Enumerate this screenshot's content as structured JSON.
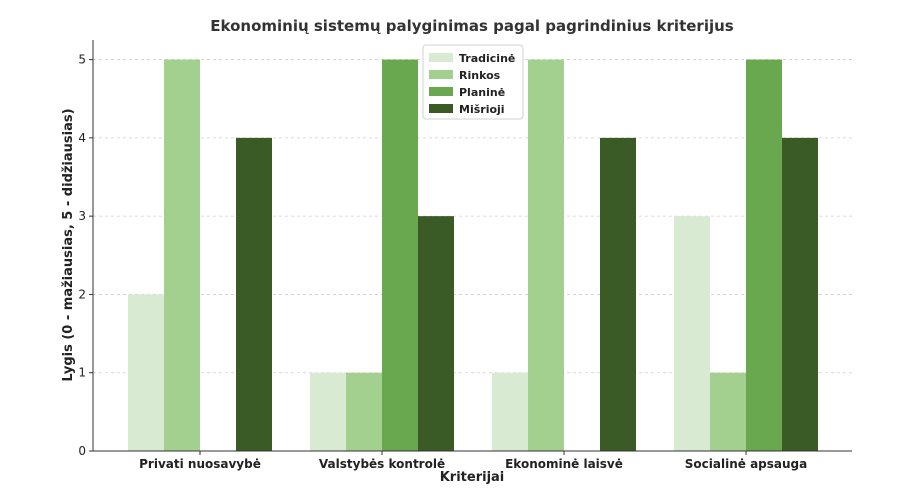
{
  "chart_data": {
    "type": "bar",
    "title": "Ekonominių sistemų palyginimas pagal pagrindinius kriterijus",
    "xlabel": "Kriterijai",
    "ylabel": "Lygis (0 - mažiausias, 5 - didžiausias)",
    "categories": [
      "Privati nuosavybė",
      "Valstybės kontrolė",
      "Ekonominė laisvė",
      "Socialinė apsauga"
    ],
    "series": [
      {
        "name": "Tradicinė",
        "color": "#d9ead3",
        "values": [
          2,
          1,
          1,
          3
        ]
      },
      {
        "name": "Rinkos",
        "color": "#a4d08f",
        "values": [
          5,
          1,
          5,
          1
        ]
      },
      {
        "name": "Planinė",
        "color": "#6aa84f",
        "values": [
          0,
          5,
          0,
          5
        ]
      },
      {
        "name": "Mišrioji",
        "color": "#3a5a26",
        "values": [
          4,
          3,
          4,
          4
        ]
      }
    ],
    "yticks": [
      0,
      1,
      2,
      3,
      4,
      5
    ],
    "ylim": [
      0,
      5.25
    ],
    "grid": "y-dashed",
    "legend_position": "top-center"
  }
}
